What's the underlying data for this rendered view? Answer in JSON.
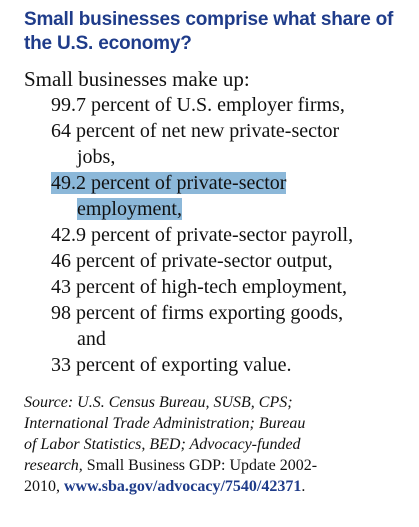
{
  "heading": {
    "line1": "Small businesses comprise what share of",
    "line2": "the U.S. economy?"
  },
  "intro": "Small businesses make up:",
  "stats": [
    {
      "line1": "99.7 percent of U.S. employer firms,",
      "line2": ""
    },
    {
      "line1": "64 percent of net new private-sector",
      "line2": "jobs,"
    },
    {
      "line1": "49.2 percent of private-sector",
      "line2": "employment,",
      "highlighted": true
    },
    {
      "line1": "42.9 percent of private-sector payroll,",
      "line2": ""
    },
    {
      "line1": "46 percent of private-sector output,",
      "line2": ""
    },
    {
      "line1": "43 percent of high-tech employment,",
      "line2": ""
    },
    {
      "line1": "98 percent of firms exporting goods,",
      "line2": "and"
    },
    {
      "line1": "33 percent of exporting value.",
      "line2": ""
    }
  ],
  "source": {
    "italic_line1": "Source: U.S. Census Bureau, SUSB, CPS;",
    "italic_line2": "International Trade Administration; Bureau",
    "italic_line3": "of Labor Statistics, BED; Advocacy-funded",
    "italic_line4": "research,",
    "plain_line4": " Small Business GDP: Update 2002-",
    "plain_line5": "2010, ",
    "url": "www.sba.gov/advocacy/7540/42371",
    "end": "."
  },
  "colors": {
    "heading": "#1f3c8a",
    "highlight": "#8cb8d9",
    "text": "#111111"
  }
}
